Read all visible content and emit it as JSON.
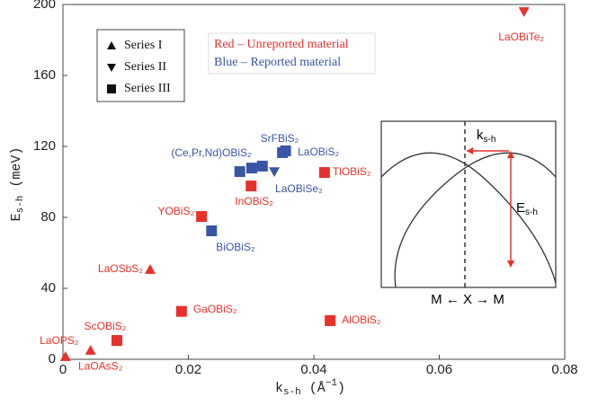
{
  "chart_data": {
    "type": "scatter",
    "x_label": [
      "k",
      "s-h",
      " (Å",
      "−1",
      ")"
    ],
    "y_label": [
      "E",
      "s-h",
      " (meV)"
    ],
    "xlim": [
      0,
      0.08
    ],
    "xticks": [
      0,
      0.02,
      0.04,
      0.06,
      0.08
    ],
    "ylim": [
      0,
      200
    ],
    "yticks": [
      0,
      40,
      80,
      120,
      160,
      200
    ],
    "notes": [
      {
        "text": "Red – Unreported material",
        "color": "#e8312a"
      },
      {
        "text": "Blue – Reported material",
        "color": "#3a55a4"
      }
    ],
    "series": [
      {
        "name": "Series I",
        "marker": "triangle-up",
        "color": "#111111",
        "x": [
          0.0004,
          0.0044,
          0.0139
        ],
        "values": [
          1.5,
          5,
          50.6
        ],
        "colors": [
          "#e8312a",
          "#e8312a",
          "#e8312a"
        ],
        "point_labels": [
          "LaOPS₂",
          "LaOAsS₂",
          "LaOSbS₂"
        ]
      },
      {
        "name": "Series II",
        "marker": "triangle-down",
        "color": "#111111",
        "x": [
          0.0735,
          0.0337
        ],
        "values": [
          196,
          105.8
        ],
        "colors": [
          "#e8312a",
          "#3a55a4"
        ],
        "point_labels": [
          "LaOBiTe₂",
          "LaOBiSe₂"
        ]
      },
      {
        "name": "Series III",
        "marker": "square",
        "color": "#111111",
        "x": [
          0.0086,
          0.0189,
          0.0221,
          0.0237,
          0.03,
          0.0282,
          0.0301,
          0.0318,
          0.0355,
          0.035,
          0.0417,
          0.0426
        ],
        "values": [
          10.6,
          27,
          80.5,
          72.4,
          97.7,
          105.8,
          107.8,
          108.9,
          117.5,
          116.5,
          105.3,
          21.8
        ],
        "colors": [
          "#e8312a",
          "#e8312a",
          "#e8312a",
          "#3a55a4",
          "#e8312a",
          "#3a55a4",
          "#3a55a4",
          "#3a55a4",
          "#3a55a4",
          "#3a55a4",
          "#e8312a",
          "#e8312a"
        ],
        "point_labels": [
          "ScOBiS₂",
          "GaOBiS₂",
          "YOBiS₂",
          "BiOBiS₂",
          "InOBiS₂",
          "(Ce,Pr,Nd)OBiS₂",
          null,
          null,
          "SrFBiS₂",
          "LaOBiS₂",
          "TlOBiS₂",
          "AlOBiS₂"
        ]
      }
    ],
    "inset": {
      "k_label": [
        "k",
        "s-h"
      ],
      "e_label": [
        "E",
        "s-h"
      ],
      "axis_label": "M ← X → M"
    }
  }
}
